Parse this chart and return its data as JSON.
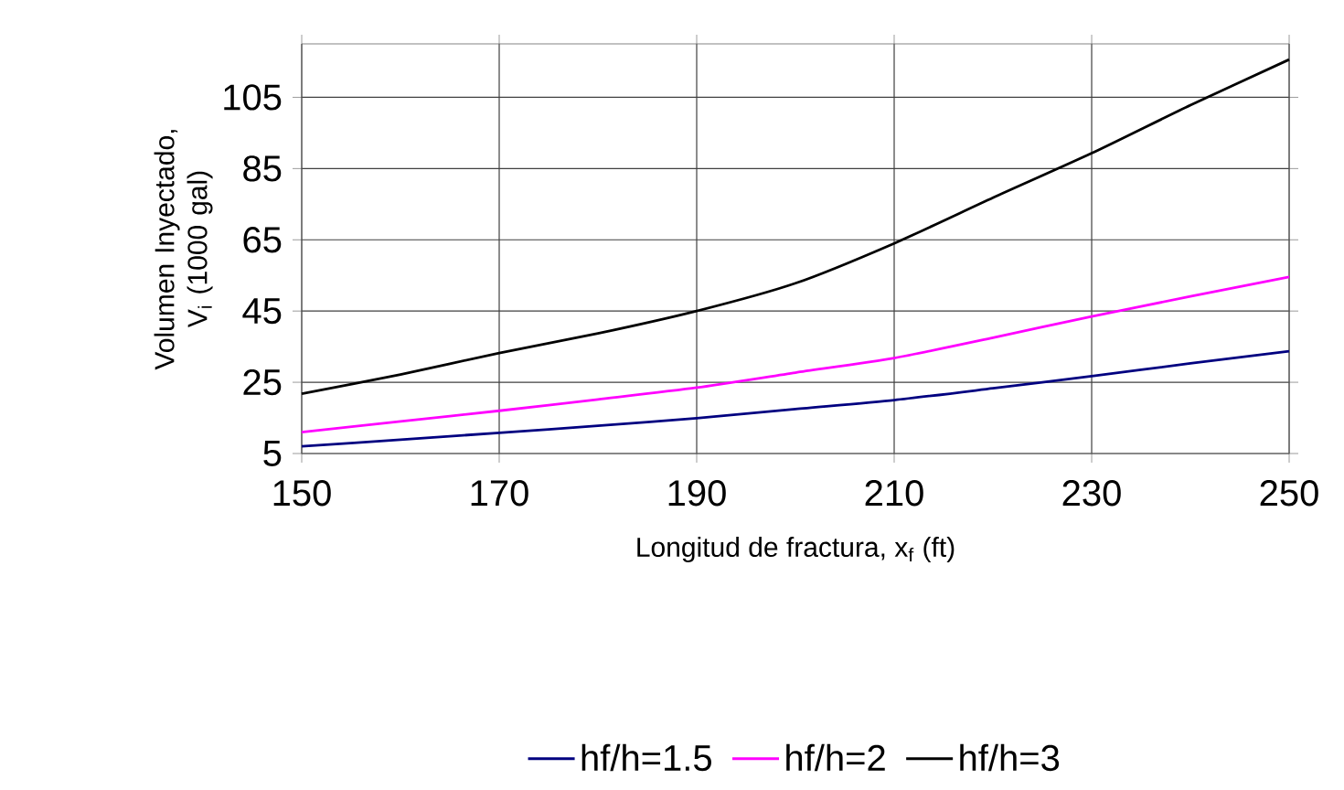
{
  "chart_data": {
    "type": "line",
    "xlabel": "Longitud de fractura, x$_{f}$ (ft)",
    "ylabel": "Volumen Inyectado, V$_{i}$ (1000 gal)",
    "x": [
      150,
      160,
      170,
      180,
      190,
      200,
      210,
      220,
      230,
      240,
      250
    ],
    "series": [
      {
        "name": "hf/h=1.5",
        "color": "#000080",
        "values": [
          7,
          8.9,
          10.8,
          12.8,
          14.9,
          17.5,
          20,
          23.3,
          26.7,
          30.3,
          33.7
        ]
      },
      {
        "name": "hf/h=2",
        "color": "#ff00ff",
        "values": [
          11,
          14,
          17,
          20.2,
          23.5,
          27.7,
          31.8,
          37.5,
          43.5,
          49.1,
          54.6
        ]
      },
      {
        "name": "hf/h=3",
        "color": "#000000",
        "values": [
          21.8,
          27.2,
          33.2,
          38.7,
          45,
          52.8,
          64,
          76.8,
          89.3,
          102.8,
          115.6
        ]
      }
    ],
    "xlim": [
      150,
      250
    ],
    "xticks": [
      150,
      170,
      190,
      210,
      230,
      250
    ],
    "ylim": [
      5,
      120
    ],
    "yticks": [
      5,
      25,
      45,
      65,
      85,
      105
    ],
    "grid": true,
    "legend": "bottom",
    "marker": "none",
    "line_style": "solid"
  }
}
